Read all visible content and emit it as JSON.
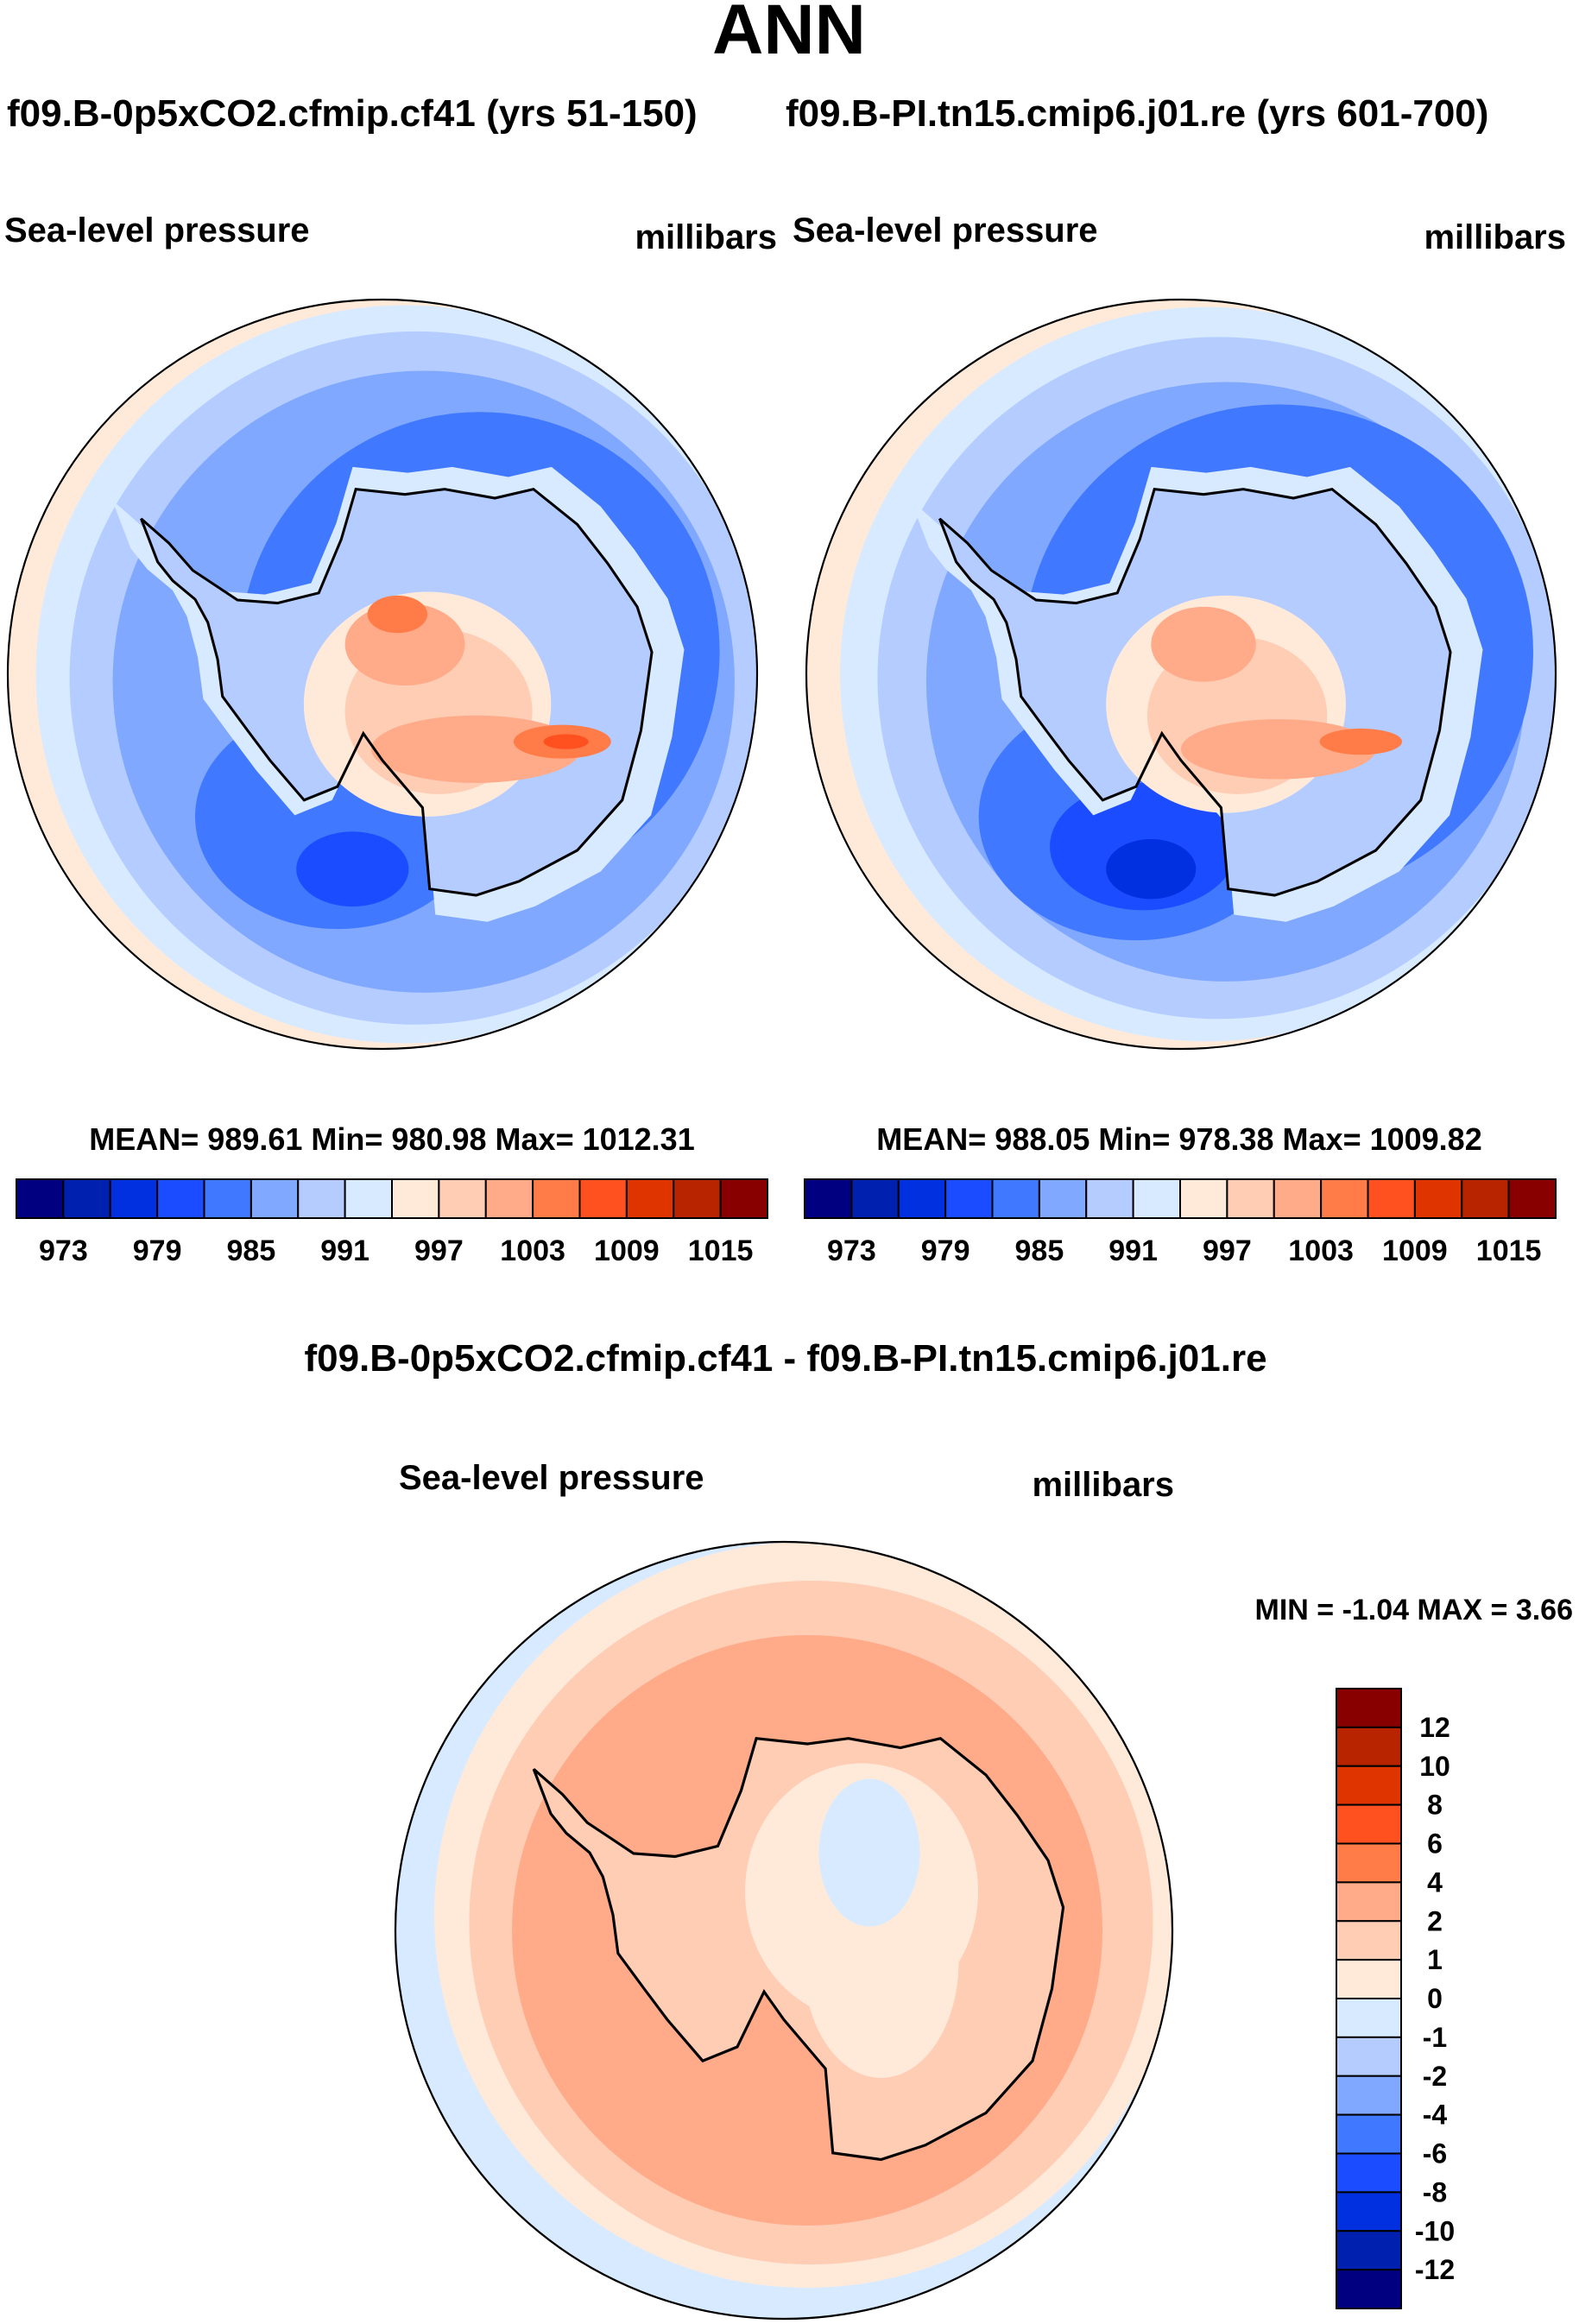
{
  "title": "ANN",
  "case_left": "f09.B-0p5xCO2.cfmip.cf41 (yrs 51-150)",
  "case_right": "f09.B-PI.tn15.cmip6.j01.re (yrs 601-700)",
  "diff_title": "f09.B-0p5xCO2.cfmip.cf41 - f09.B-PI.tn15.cmip6.j01.re",
  "colors": [
    "#000080",
    "#0020b0",
    "#0030e0",
    "#1c4cff",
    "#4078ff",
    "#80a8ff",
    "#b4ccff",
    "#d8eaff",
    "#ffeada",
    "#ffccb4",
    "#ffaa88",
    "#ff7c48",
    "#ff5020",
    "#e03400",
    "#b82400",
    "#880000"
  ],
  "chart_data": [
    {
      "type": "heatmap",
      "projection": "south-polar stereographic",
      "variable": "Sea-level pressure",
      "units": "millibars",
      "stats": "MEAN= 989.61  Min= 980.98  Max= 1012.31",
      "mean": 989.61,
      "min": 980.98,
      "max": 1012.31,
      "levels": [
        "973",
        "979",
        "985",
        "991",
        "997",
        "1003",
        "1009",
        "1015"
      ]
    },
    {
      "type": "heatmap",
      "projection": "south-polar stereographic",
      "variable": "Sea-level pressure",
      "units": "millibars",
      "stats": "MEAN= 988.05  Min= 978.38  Max= 1009.82",
      "mean": 988.05,
      "min": 978.38,
      "max": 1009.82,
      "levels": [
        "973",
        "979",
        "985",
        "991",
        "997",
        "1003",
        "1009",
        "1015"
      ]
    },
    {
      "type": "heatmap",
      "projection": "south-polar stereographic",
      "variable": "Sea-level pressure",
      "units": "millibars",
      "stats": "MIN =  -1.04 MAX =   3.66",
      "min": -1.04,
      "max": 3.66,
      "levels": [
        "12",
        "10",
        "8",
        "6",
        "4",
        "2",
        "1",
        "0",
        "-1",
        "-2",
        "-4",
        "-6",
        "-8",
        "-10",
        "-12"
      ]
    }
  ]
}
